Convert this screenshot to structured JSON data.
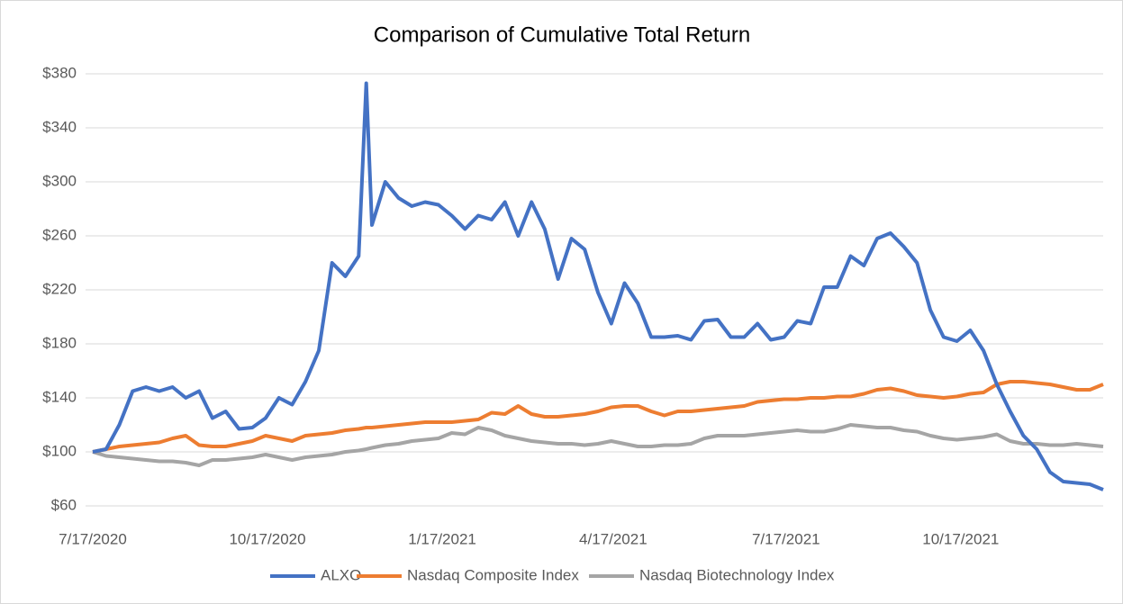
{
  "chart_data": {
    "type": "line",
    "title": "Comparison of Cumulative Total Return",
    "x": [
      "2020-07-17",
      "2020-07-24",
      "2020-07-31",
      "2020-08-07",
      "2020-08-14",
      "2020-08-21",
      "2020-08-28",
      "2020-09-04",
      "2020-09-11",
      "2020-09-18",
      "2020-09-25",
      "2020-10-02",
      "2020-10-09",
      "2020-10-16",
      "2020-10-23",
      "2020-10-30",
      "2020-11-06",
      "2020-11-13",
      "2020-11-20",
      "2020-11-27",
      "2020-12-04",
      "2020-12-08",
      "2020-12-11",
      "2020-12-18",
      "2020-12-25",
      "2021-01-01",
      "2021-01-08",
      "2021-01-15",
      "2021-01-22",
      "2021-01-29",
      "2021-02-05",
      "2021-02-12",
      "2021-02-19",
      "2021-02-26",
      "2021-03-05",
      "2021-03-12",
      "2021-03-19",
      "2021-03-26",
      "2021-04-02",
      "2021-04-09",
      "2021-04-16",
      "2021-04-23",
      "2021-04-30",
      "2021-05-07",
      "2021-05-14",
      "2021-05-21",
      "2021-05-28",
      "2021-06-04",
      "2021-06-11",
      "2021-06-18",
      "2021-06-25",
      "2021-07-02",
      "2021-07-09",
      "2021-07-16",
      "2021-07-23",
      "2021-07-30",
      "2021-08-06",
      "2021-08-13",
      "2021-08-20",
      "2021-08-27",
      "2021-09-03",
      "2021-09-10",
      "2021-09-17",
      "2021-09-24",
      "2021-10-01",
      "2021-10-08",
      "2021-10-15",
      "2021-10-22",
      "2021-10-29",
      "2021-11-05",
      "2021-11-12",
      "2021-11-19",
      "2021-11-26",
      "2021-12-03",
      "2021-12-10",
      "2021-12-17",
      "2021-12-24",
      "2021-12-31"
    ],
    "series": [
      {
        "name": "ALXO",
        "color": "#4472c4",
        "values": [
          100,
          102,
          120,
          145,
          148,
          145,
          148,
          140,
          145,
          125,
          130,
          117,
          118,
          125,
          140,
          135,
          152,
          175,
          240,
          230,
          245,
          373,
          268,
          300,
          288,
          282,
          285,
          283,
          275,
          265,
          275,
          272,
          285,
          260,
          285,
          265,
          228,
          258,
          250,
          218,
          195,
          225,
          210,
          185,
          185,
          186,
          183,
          197,
          198,
          185,
          185,
          195,
          183,
          185,
          197,
          195,
          222,
          222,
          245,
          238,
          258,
          262,
          252,
          240,
          205,
          185,
          182,
          190,
          175,
          150,
          130,
          112,
          102,
          85,
          78,
          77,
          76,
          72
        ]
      },
      {
        "name": "Nasdaq Composite Index",
        "color": "#ed7d31",
        "values": [
          100,
          102,
          104,
          105,
          106,
          107,
          110,
          112,
          105,
          104,
          104,
          106,
          108,
          112,
          110,
          108,
          112,
          113,
          114,
          116,
          117,
          118,
          118,
          119,
          120,
          121,
          122,
          122,
          122,
          123,
          124,
          129,
          128,
          134,
          128,
          126,
          126,
          127,
          128,
          130,
          133,
          134,
          134,
          130,
          127,
          130,
          130,
          131,
          132,
          133,
          134,
          137,
          138,
          139,
          139,
          140,
          140,
          141,
          141,
          143,
          146,
          147,
          145,
          142,
          141,
          140,
          141,
          143,
          144,
          150,
          152,
          152,
          151,
          150,
          148,
          146,
          146,
          150
        ]
      },
      {
        "name": "Nasdaq Biotechnology Index",
        "color": "#a5a5a5",
        "values": [
          100,
          97,
          96,
          95,
          94,
          93,
          93,
          92,
          90,
          94,
          94,
          95,
          96,
          98,
          96,
          94,
          96,
          97,
          98,
          100,
          101,
          102,
          103,
          105,
          106,
          108,
          109,
          110,
          114,
          113,
          118,
          116,
          112,
          110,
          108,
          107,
          106,
          106,
          105,
          106,
          108,
          106,
          104,
          104,
          105,
          105,
          106,
          110,
          112,
          112,
          112,
          113,
          114,
          115,
          116,
          115,
          115,
          117,
          120,
          119,
          118,
          118,
          116,
          115,
          112,
          110,
          109,
          110,
          111,
          113,
          108,
          106,
          106,
          105,
          105,
          106,
          105,
          104
        ]
      }
    ],
    "xlim": [
      "2020-07-17",
      "2021-12-31"
    ],
    "xticks": [
      {
        "value": "2020-07-17",
        "label": "7/17/2020"
      },
      {
        "value": "2020-10-17",
        "label": "10/17/2020"
      },
      {
        "value": "2021-01-17",
        "label": "1/17/2021"
      },
      {
        "value": "2021-04-17",
        "label": "4/17/2021"
      },
      {
        "value": "2021-07-17",
        "label": "7/17/2021"
      },
      {
        "value": "2021-10-17",
        "label": "10/17/2021"
      }
    ],
    "ylim": [
      60,
      380
    ],
    "yticks": [
      {
        "value": 60,
        "label": "$60"
      },
      {
        "value": 100,
        "label": "$100"
      },
      {
        "value": 140,
        "label": "$140"
      },
      {
        "value": 180,
        "label": "$180"
      },
      {
        "value": 220,
        "label": "$220"
      },
      {
        "value": 260,
        "label": "$260"
      },
      {
        "value": 300,
        "label": "$300"
      },
      {
        "value": 340,
        "label": "$340"
      },
      {
        "value": 380,
        "label": "$380"
      }
    ],
    "grid": true,
    "legend": "bottom"
  }
}
